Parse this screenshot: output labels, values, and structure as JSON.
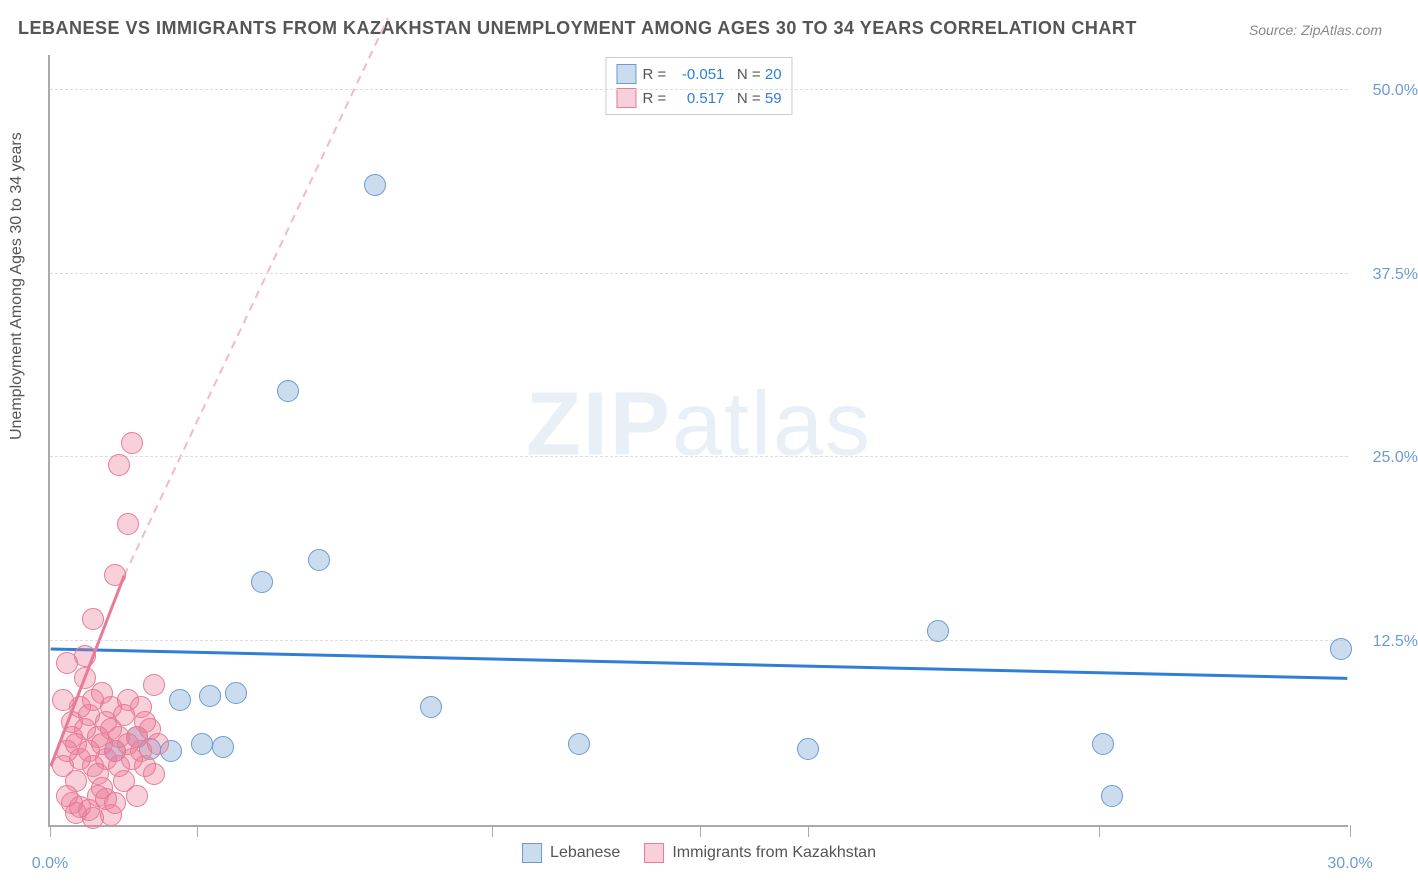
{
  "title": "LEBANESE VS IMMIGRANTS FROM KAZAKHSTAN UNEMPLOYMENT AMONG AGES 30 TO 34 YEARS CORRELATION CHART",
  "source": "Source: ZipAtlas.com",
  "y_axis_label": "Unemployment Among Ages 30 to 34 years",
  "watermark_bold": "ZIP",
  "watermark_light": "atlas",
  "chart": {
    "type": "scatter",
    "background_color": "#ffffff",
    "grid_color": "#dddddd",
    "axis_color": "#aaaaaa",
    "xlim": [
      0,
      30
    ],
    "ylim": [
      0,
      52.5
    ],
    "y_ticks": [
      {
        "v": 12.5,
        "label": "12.5%"
      },
      {
        "v": 25.0,
        "label": "25.0%"
      },
      {
        "v": 37.5,
        "label": "37.5%"
      },
      {
        "v": 50.0,
        "label": "50.0%"
      }
    ],
    "x_ticks": [
      {
        "v": 0,
        "label": "0.0%"
      },
      {
        "v": 3.4,
        "label": ""
      },
      {
        "v": 10.2,
        "label": ""
      },
      {
        "v": 15,
        "label": ""
      },
      {
        "v": 17.5,
        "label": ""
      },
      {
        "v": 24.2,
        "label": ""
      },
      {
        "v": 30,
        "label": "30.0%"
      }
    ],
    "series": [
      {
        "name": "Lebanese",
        "color_fill": "rgba(107,155,209,0.35)",
        "color_stroke": "#6b9bd1",
        "marker_radius": 11,
        "r": "-0.051",
        "n": "20",
        "trend": {
          "x1": 0,
          "y1": 12.0,
          "x2": 30,
          "y2": 10.0,
          "color": "#2f7ed8",
          "width": 3,
          "dashed": false
        },
        "points": [
          {
            "x": 1.5,
            "y": 5.0
          },
          {
            "x": 2.0,
            "y": 6.0
          },
          {
            "x": 2.3,
            "y": 5.2
          },
          {
            "x": 3.0,
            "y": 8.5
          },
          {
            "x": 3.5,
            "y": 5.5
          },
          {
            "x": 3.7,
            "y": 8.8
          },
          {
            "x": 4.3,
            "y": 9.0
          },
          {
            "x": 4.9,
            "y": 16.5
          },
          {
            "x": 5.5,
            "y": 29.5
          },
          {
            "x": 6.2,
            "y": 18.0
          },
          {
            "x": 7.5,
            "y": 43.5
          },
          {
            "x": 8.8,
            "y": 8.0
          },
          {
            "x": 12.2,
            "y": 5.5
          },
          {
            "x": 17.5,
            "y": 5.2
          },
          {
            "x": 20.5,
            "y": 13.2
          },
          {
            "x": 24.3,
            "y": 5.5
          },
          {
            "x": 24.5,
            "y": 2.0
          },
          {
            "x": 29.8,
            "y": 12.0
          },
          {
            "x": 2.8,
            "y": 5.0
          },
          {
            "x": 4.0,
            "y": 5.3
          }
        ]
      },
      {
        "name": "Immigrants from Kazakhstan",
        "color_fill": "rgba(235,120,150,0.35)",
        "color_stroke": "#e87b99",
        "marker_radius": 11,
        "r": "0.517",
        "n": "59",
        "trend": {
          "x1": 0,
          "y1": 4.0,
          "x2": 1.7,
          "y2": 17.0,
          "color": "#e87b99",
          "width": 3,
          "dashed": false
        },
        "trend_ext": {
          "x1": 1.7,
          "y1": 17.0,
          "x2": 7.8,
          "y2": 55.0,
          "color": "#f4b8c7",
          "width": 2,
          "dashed": true
        },
        "points": [
          {
            "x": 0.3,
            "y": 4.0
          },
          {
            "x": 0.4,
            "y": 5.0
          },
          {
            "x": 0.5,
            "y": 6.0
          },
          {
            "x": 0.5,
            "y": 7.0
          },
          {
            "x": 0.6,
            "y": 3.0
          },
          {
            "x": 0.6,
            "y": 5.5
          },
          {
            "x": 0.7,
            "y": 8.0
          },
          {
            "x": 0.7,
            "y": 4.5
          },
          {
            "x": 0.8,
            "y": 6.5
          },
          {
            "x": 0.8,
            "y": 10.0
          },
          {
            "x": 0.8,
            "y": 11.5
          },
          {
            "x": 0.9,
            "y": 5.0
          },
          {
            "x": 0.9,
            "y": 7.5
          },
          {
            "x": 1.0,
            "y": 4.0
          },
          {
            "x": 1.0,
            "y": 8.5
          },
          {
            "x": 1.0,
            "y": 14.0
          },
          {
            "x": 1.1,
            "y": 6.0
          },
          {
            "x": 1.1,
            "y": 3.5
          },
          {
            "x": 1.2,
            "y": 2.5
          },
          {
            "x": 1.2,
            "y": 5.5
          },
          {
            "x": 1.2,
            "y": 9.0
          },
          {
            "x": 1.3,
            "y": 4.5
          },
          {
            "x": 1.3,
            "y": 7.0
          },
          {
            "x": 1.4,
            "y": 6.5
          },
          {
            "x": 1.4,
            "y": 8.0
          },
          {
            "x": 1.5,
            "y": 5.0
          },
          {
            "x": 1.5,
            "y": 1.5
          },
          {
            "x": 1.5,
            "y": 17.0
          },
          {
            "x": 1.6,
            "y": 4.0
          },
          {
            "x": 1.6,
            "y": 6.0
          },
          {
            "x": 1.6,
            "y": 24.5
          },
          {
            "x": 1.7,
            "y": 3.0
          },
          {
            "x": 1.7,
            "y": 7.5
          },
          {
            "x": 1.8,
            "y": 5.5
          },
          {
            "x": 1.8,
            "y": 8.5
          },
          {
            "x": 1.8,
            "y": 20.5
          },
          {
            "x": 1.9,
            "y": 4.5
          },
          {
            "x": 1.9,
            "y": 26.0
          },
          {
            "x": 2.0,
            "y": 6.0
          },
          {
            "x": 2.0,
            "y": 2.0
          },
          {
            "x": 2.1,
            "y": 5.0
          },
          {
            "x": 2.1,
            "y": 8.0
          },
          {
            "x": 2.2,
            "y": 4.0
          },
          {
            "x": 2.2,
            "y": 7.0
          },
          {
            "x": 2.3,
            "y": 6.5
          },
          {
            "x": 2.4,
            "y": 3.5
          },
          {
            "x": 2.4,
            "y": 9.5
          },
          {
            "x": 2.5,
            "y": 5.5
          },
          {
            "x": 0.4,
            "y": 2.0
          },
          {
            "x": 0.5,
            "y": 1.5
          },
          {
            "x": 0.6,
            "y": 0.8
          },
          {
            "x": 0.7,
            "y": 1.2
          },
          {
            "x": 0.9,
            "y": 1.0
          },
          {
            "x": 1.0,
            "y": 0.5
          },
          {
            "x": 1.1,
            "y": 2.0
          },
          {
            "x": 1.3,
            "y": 1.8
          },
          {
            "x": 1.4,
            "y": 0.7
          },
          {
            "x": 0.3,
            "y": 8.5
          },
          {
            "x": 0.4,
            "y": 11.0
          }
        ]
      }
    ],
    "legend_top": {
      "r_label": "R =",
      "n_label": "N ="
    },
    "legend_bottom": {
      "items": [
        "Lebanese",
        "Immigrants from Kazakhstan"
      ]
    },
    "y_tick_label_color": "#6b9bd1",
    "x_tick_label_color": "#6b9bd1",
    "title_color": "#555555",
    "label_fontsize": 16,
    "title_fontsize": 18
  }
}
